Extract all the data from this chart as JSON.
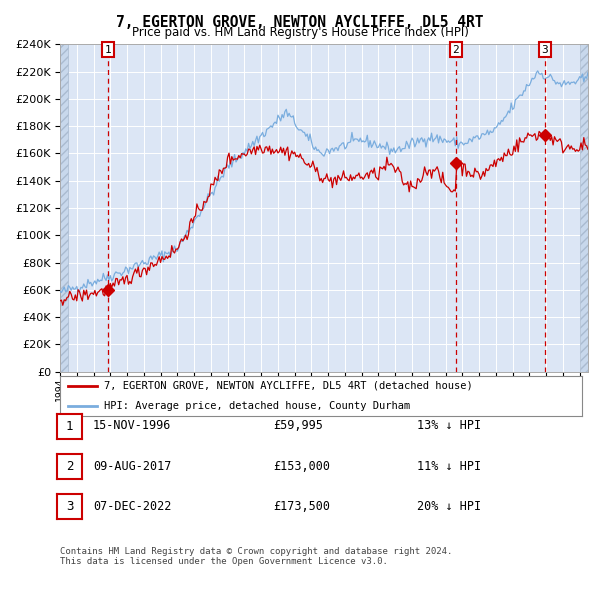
{
  "title": "7, EGERTON GROVE, NEWTON AYCLIFFE, DL5 4RT",
  "subtitle": "Price paid vs. HM Land Registry's House Price Index (HPI)",
  "legend_line1": "7, EGERTON GROVE, NEWTON AYCLIFFE, DL5 4RT (detached house)",
  "legend_line2": "HPI: Average price, detached house, County Durham",
  "footnote1": "Contains HM Land Registry data © Crown copyright and database right 2024.",
  "footnote2": "This data is licensed under the Open Government Licence v3.0.",
  "transactions": [
    {
      "num": 1,
      "date": "15-NOV-1996",
      "price": "£59,995",
      "pct": "13%",
      "dir": "↓",
      "year": 1996.88,
      "price_val": 59995
    },
    {
      "num": 2,
      "date": "09-AUG-2017",
      "price": "£153,000",
      "pct": "11%",
      "dir": "↓",
      "year": 2017.61,
      "price_val": 153000
    },
    {
      "num": 3,
      "date": "07-DEC-2022",
      "price": "£173,500",
      "pct": "20%",
      "dir": "↓",
      "year": 2022.93,
      "price_val": 173500
    }
  ],
  "ylim": [
    0,
    240000
  ],
  "yticks": [
    0,
    20000,
    40000,
    60000,
    80000,
    100000,
    120000,
    140000,
    160000,
    180000,
    200000,
    220000,
    240000
  ],
  "xmin": 1994.0,
  "xmax": 2025.5,
  "background_color": "#dce6f5",
  "hpi_color": "#7aadde",
  "price_color": "#cc0000",
  "grid_color": "#ffffff",
  "vline_color": "#cc0000",
  "hatch_left_end": 1994.5,
  "hatch_right_start": 2025.0
}
